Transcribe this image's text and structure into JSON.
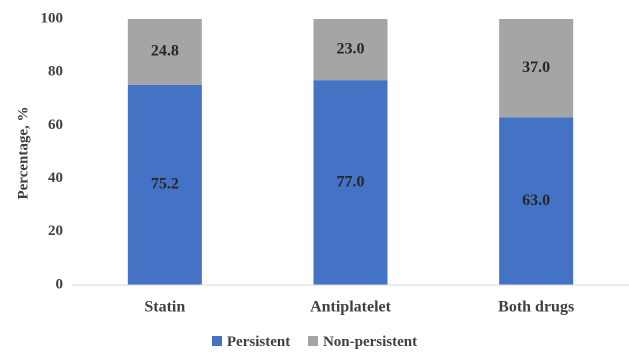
{
  "chart_data": {
    "type": "bar",
    "stacked": true,
    "categories": [
      "Statin",
      "Antiplatelet",
      "Both drugs"
    ],
    "series": [
      {
        "name": "Persistent",
        "values": [
          75.2,
          77.0,
          63.0
        ],
        "labels": [
          "75.2",
          "77.0",
          "63.0"
        ],
        "color": "#4472c4"
      },
      {
        "name": "Non-persistent",
        "values": [
          24.8,
          23.0,
          37.0
        ],
        "labels": [
          "24.8",
          "23.0",
          "37.0"
        ],
        "color": "#a5a5a5"
      }
    ],
    "ylabel": "Percentage, %",
    "ylim": [
      0,
      100
    ],
    "yticks": [
      0,
      20,
      40,
      60,
      80,
      100
    ],
    "grid": false,
    "legend_position": "bottom"
  }
}
